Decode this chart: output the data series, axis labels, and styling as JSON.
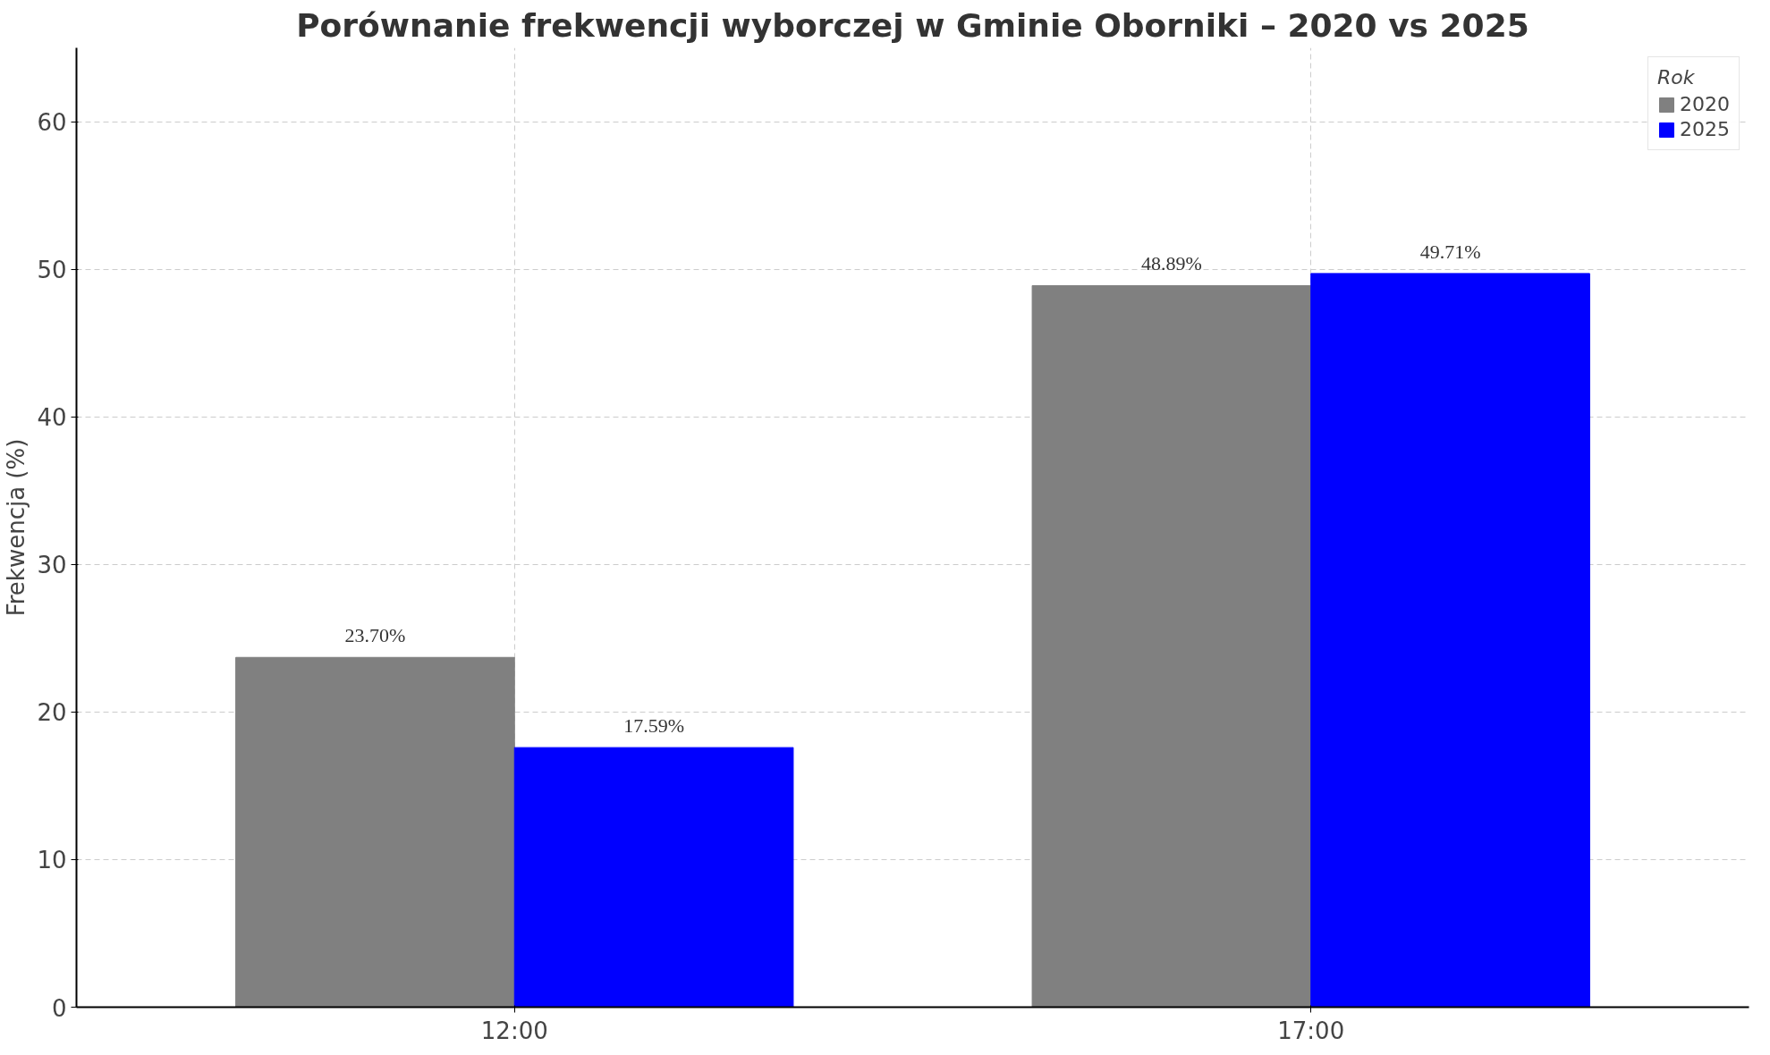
{
  "chart_data": {
    "type": "bar",
    "title": "Porównanie frekwencji wyborczej w Gminie Oborniki – 2020 vs 2025",
    "ylabel": "Frekwencja (%)",
    "legend_title": "Rok",
    "categories": [
      "12:00",
      "17:00"
    ],
    "series": [
      {
        "name": "2020",
        "color": "#808080",
        "values": [
          23.7,
          48.89
        ],
        "value_labels": [
          "23.70%",
          "48.89%"
        ]
      },
      {
        "name": "2025",
        "color": "#0000ff",
        "values": [
          17.59,
          49.71
        ],
        "value_labels": [
          "17.59%",
          "49.71%"
        ]
      }
    ],
    "ylim": [
      0,
      65
    ],
    "yticks": [
      0,
      10,
      20,
      30,
      40,
      50,
      60
    ],
    "grid": true,
    "legend": "top right"
  }
}
